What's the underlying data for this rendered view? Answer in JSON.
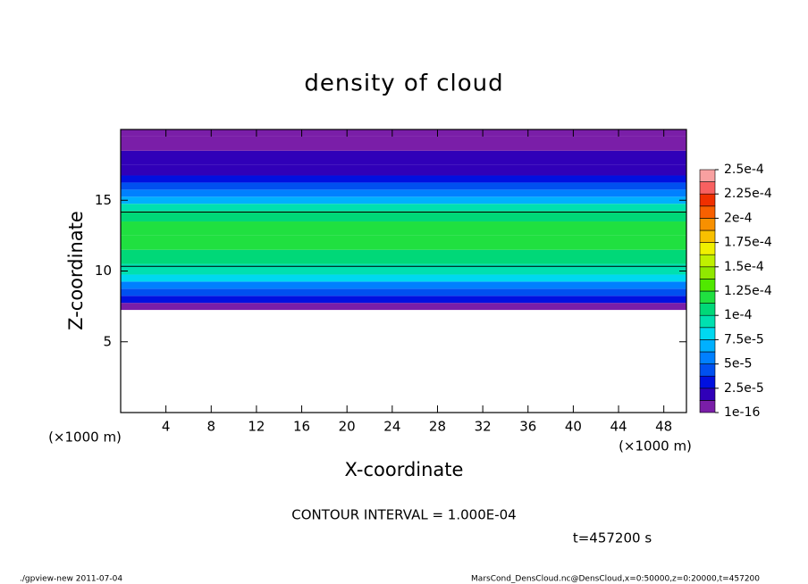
{
  "chart_data": {
    "type": "contour",
    "title": "density of cloud",
    "x_label": "X-coordinate",
    "y_label": "Z-coordinate",
    "x_unit": "(×1000 m)",
    "y_unit": "(×1000 m)",
    "xlim": [
      0,
      50
    ],
    "xticks": [
      4,
      8,
      12,
      16,
      20,
      24,
      28,
      32,
      36,
      40,
      44,
      48
    ],
    "ylim": [
      0,
      20
    ],
    "yticks": [
      5,
      10,
      15
    ],
    "z": [
      7.5,
      8,
      8.5,
      9,
      9.5,
      10,
      11,
      12,
      13,
      14,
      14.5,
      15,
      15.5,
      16,
      16.5,
      17,
      18,
      19,
      20
    ],
    "values": [
      1e-05,
      3e-05,
      4.5e-05,
      6e-05,
      8e-05,
      9.5e-05,
      0.00011,
      0.00012,
      0.000115,
      0.000105,
      9e-05,
      7e-05,
      5.5e-05,
      4e-05,
      3e-05,
      2.2e-05,
      1.5e-05,
      8e-06,
      5e-06
    ],
    "colorbar_ticks": [
      1e-16,
      {
        "value": 2.5e-05,
        "label": "2.5e-5"
      },
      {
        "value": 5e-05,
        "label": "5e-5"
      },
      {
        "value": 7.5e-05,
        "label": "7.5e-5"
      },
      {
        "value": 0.0001,
        "label": "1e-4"
      },
      {
        "value": 0.000125,
        "label": "1.25e-4"
      },
      {
        "value": 0.00015,
        "label": "1.5e-4"
      },
      {
        "value": 0.000175,
        "label": "1.75e-4"
      },
      {
        "value": 0.0002,
        "label": "2e-4"
      },
      {
        "value": 0.000225,
        "label": "2.25e-4"
      },
      {
        "value": 0.00025,
        "label": "2.5e-4"
      }
    ],
    "colors": [
      "#7a1ea8",
      "#3000b8",
      "#0010e0",
      "#0050f0",
      "#0080ff",
      "#00b0ff",
      "#00d8f0",
      "#00e0b0",
      "#00d878",
      "#20e040",
      "#50e800",
      "#90e800",
      "#c0f000",
      "#f0f000",
      "#f8c000",
      "#f89000",
      "#f86000",
      "#f03000",
      "#f86060",
      "#f8a0a0"
    ],
    "contour_interval": 0.0001,
    "contour_label": "CONTOUR INTERVAL = 1.000E-04",
    "time_label": "t=457200 s",
    "footer_left": "./gpview-new  2011-07-04",
    "footer_right": "MarsCond_DensCloud.nc@DensCloud,x=0:50000,z=0:20000,t=457200"
  }
}
